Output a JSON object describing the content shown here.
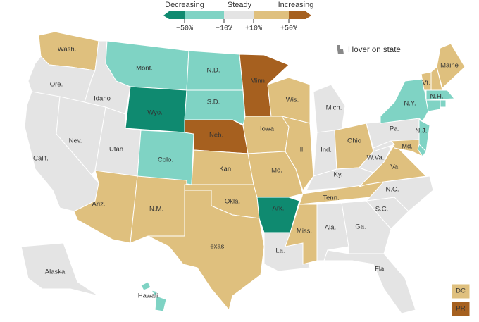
{
  "legend": {
    "labels": [
      "Decreasing",
      "Steady",
      "Increasing"
    ],
    "ticks": [
      "−50%",
      "−10%",
      "+10%",
      "+50%"
    ],
    "colors": [
      "#0f8a70",
      "#7fd3c4",
      "#e4e4e4",
      "#dfc07e",
      "#a6601f"
    ]
  },
  "hint": "Hover on state",
  "states": [
    {
      "label": "Wash.",
      "color": "#dfc07e"
    },
    {
      "label": "Ore.",
      "color": "#e4e4e4"
    },
    {
      "label": "Calif.",
      "color": "#e4e4e4"
    },
    {
      "label": "Nev.",
      "color": "#e4e4e4"
    },
    {
      "label": "Idaho",
      "color": "#e4e4e4"
    },
    {
      "label": "Mont.",
      "color": "#7fd3c4"
    },
    {
      "label": "Wyo.",
      "color": "#0f8a70"
    },
    {
      "label": "Utah",
      "color": "#e4e4e4"
    },
    {
      "label": "Ariz.",
      "color": "#dfc07e"
    },
    {
      "label": "Colo.",
      "color": "#7fd3c4"
    },
    {
      "label": "N.M.",
      "color": "#dfc07e"
    },
    {
      "label": "N.D.",
      "color": "#7fd3c4"
    },
    {
      "label": "S.D.",
      "color": "#7fd3c4"
    },
    {
      "label": "Neb.",
      "color": "#a6601f"
    },
    {
      "label": "Kan.",
      "color": "#dfc07e"
    },
    {
      "label": "Okla.",
      "color": "#dfc07e"
    },
    {
      "label": "Texas",
      "color": "#dfc07e"
    },
    {
      "label": "Minn.",
      "color": "#a6601f"
    },
    {
      "label": "Iowa",
      "color": "#dfc07e"
    },
    {
      "label": "Mo.",
      "color": "#dfc07e"
    },
    {
      "label": "Ark.",
      "color": "#0f8a70"
    },
    {
      "label": "La.",
      "color": "#e4e4e4"
    },
    {
      "label": "Wis.",
      "color": "#dfc07e"
    },
    {
      "label": "Ill.",
      "color": "#dfc07e"
    },
    {
      "label": "Mich.",
      "color": "#e4e4e4"
    },
    {
      "label": "Ind.",
      "color": "#e4e4e4"
    },
    {
      "label": "Ohio",
      "color": "#dfc07e"
    },
    {
      "label": "Ky.",
      "color": "#e4e4e4"
    },
    {
      "label": "Tenn.",
      "color": "#dfc07e"
    },
    {
      "label": "Miss.",
      "color": "#dfc07e"
    },
    {
      "label": "Ala.",
      "color": "#e4e4e4"
    },
    {
      "label": "Ga.",
      "color": "#e4e4e4"
    },
    {
      "label": "Fla.",
      "color": "#e4e4e4"
    },
    {
      "label": "S.C.",
      "color": "#e4e4e4"
    },
    {
      "label": "N.C.",
      "color": "#e4e4e4"
    },
    {
      "label": "Va.",
      "color": "#dfc07e"
    },
    {
      "label": "W.Va.",
      "color": "#e4e4e4"
    },
    {
      "label": "Pa.",
      "color": "#e4e4e4"
    },
    {
      "label": "N.Y.",
      "color": "#7fd3c4"
    },
    {
      "label": "Vt.",
      "color": "#dfc07e"
    },
    {
      "label": "N.H.",
      "color": "#dfc07e"
    },
    {
      "label": "Maine",
      "color": "#dfc07e"
    },
    {
      "label": "Md.",
      "color": "#dfc07e"
    },
    {
      "label": "N.J.",
      "color": "#7fd3c4"
    },
    {
      "label": "Alaska",
      "color": "#e4e4e4"
    },
    {
      "label": "Hawaii",
      "color": "#7fd3c4"
    },
    {
      "label": "DC",
      "color": "#dfc07e"
    },
    {
      "label": "PR",
      "color": "#a6601f"
    },
    {
      "color": "#7fd3c4"
    },
    {
      "color": "#7fd3c4"
    },
    {
      "color": "#7fd3c4"
    },
    {
      "color": "#7fd3c4"
    },
    {
      "color": "#e4e4e4"
    }
  ]
}
